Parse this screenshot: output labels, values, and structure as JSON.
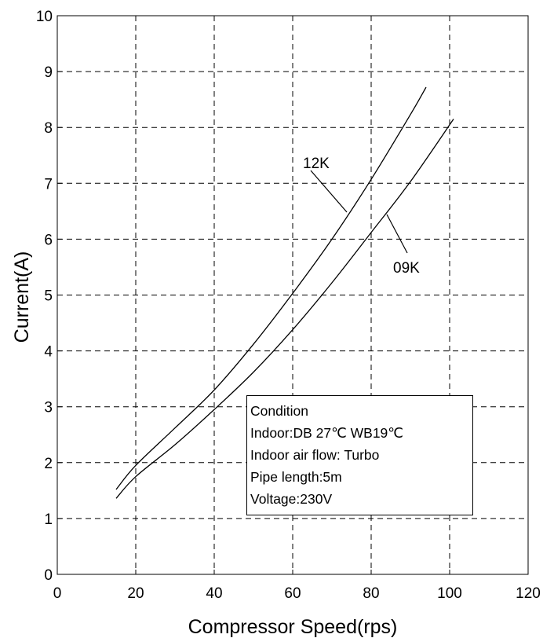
{
  "chart_data": {
    "type": "line",
    "xlabel": "Compressor Speed(rps)",
    "ylabel": "Current(A)",
    "xlim": [
      0,
      120
    ],
    "ylim": [
      0,
      10
    ],
    "xticks": [
      "0",
      "20",
      "40",
      "60",
      "80",
      "100",
      "120"
    ],
    "yticks": [
      "0",
      "1",
      "2",
      "3",
      "4",
      "5",
      "6",
      "7",
      "8",
      "9",
      "10"
    ],
    "grid": true,
    "series": [
      {
        "name": "12K",
        "x": [
          15,
          20,
          30,
          40,
          50,
          60,
          70,
          80,
          90,
          94
        ],
        "y": [
          1.52,
          1.95,
          2.62,
          3.3,
          4.12,
          5.03,
          6.0,
          7.07,
          8.23,
          8.72
        ]
      },
      {
        "name": "09K",
        "x": [
          15,
          20,
          30,
          40,
          50,
          60,
          70,
          80,
          90,
          101
        ],
        "y": [
          1.36,
          1.75,
          2.32,
          2.95,
          3.62,
          4.38,
          5.22,
          6.12,
          7.03,
          8.15
        ]
      }
    ],
    "annotations": {
      "label_12k": "12K",
      "label_09k": "09K"
    },
    "legend_box": {
      "lines": [
        "Condition",
        "Indoor:DB 27℃ WB19℃",
        "Indoor air flow: Turbo",
        "Pipe length:5m",
        "Voltage:230V"
      ],
      "placement": "bottom-right"
    }
  }
}
